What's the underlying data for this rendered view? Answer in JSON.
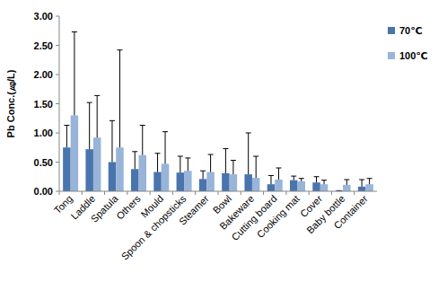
{
  "chart_data": {
    "type": "bar",
    "y_label": "Pb Conc.(㎍/L)",
    "categories": [
      "Tong",
      "Laddle",
      "Spatula",
      "Others",
      "Mould",
      "Spoon & chopsticks",
      "Steamer",
      "Bowl",
      "Bakeware",
      "Cutting board",
      "Cooking mat",
      "Cover",
      "Baby bottle",
      "Container"
    ],
    "series": [
      {
        "name": "70℃",
        "color": "#4a74ad",
        "values": [
          0.75,
          0.72,
          0.5,
          0.38,
          0.33,
          0.32,
          0.21,
          0.31,
          0.29,
          0.12,
          0.19,
          0.15,
          0.01,
          0.08
        ],
        "errors": [
          0.38,
          0.8,
          0.71,
          0.3,
          0.32,
          0.28,
          0.14,
          0.42,
          0.71,
          0.15,
          0.07,
          0.1,
          0.0,
          0.12
        ]
      },
      {
        "name": "100℃",
        "color": "#98b4d8",
        "values": [
          1.3,
          0.92,
          0.75,
          0.62,
          0.47,
          0.35,
          0.33,
          0.29,
          0.23,
          0.2,
          0.17,
          0.12,
          0.11,
          0.12
        ],
        "errors": [
          1.43,
          0.72,
          1.67,
          0.51,
          0.55,
          0.22,
          0.3,
          0.24,
          0.37,
          0.2,
          0.05,
          0.07,
          0.09,
          0.1
        ]
      }
    ],
    "ylim": [
      0,
      3
    ],
    "yticks": [
      {
        "value": 0,
        "label": "0.00"
      },
      {
        "value": 0.5,
        "label": "0.50"
      },
      {
        "value": 1,
        "label": "1.00"
      },
      {
        "value": 1.5,
        "label": "1.50"
      },
      {
        "value": 2,
        "label": "2.00"
      },
      {
        "value": 2.5,
        "label": "2.50"
      },
      {
        "value": 3,
        "label": "3.00"
      }
    ],
    "grid": false,
    "legend": "right"
  }
}
